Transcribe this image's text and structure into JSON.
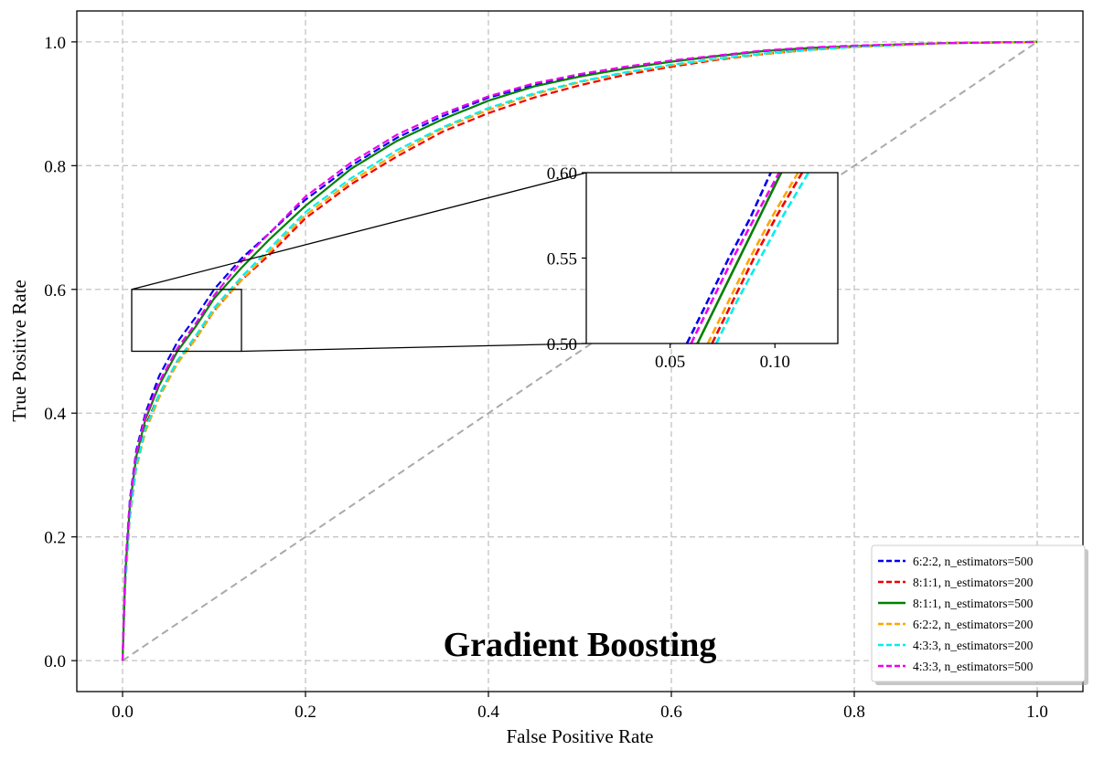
{
  "chart_data": {
    "type": "line",
    "title": "",
    "annotation": "Gradient Boosting",
    "xlabel": "False Positive Rate",
    "ylabel": "True Positive Rate",
    "xlim": [
      -0.05,
      1.05
    ],
    "ylim": [
      -0.05,
      1.05
    ],
    "xticks": [
      0.0,
      0.2,
      0.4,
      0.6,
      0.8,
      1.0
    ],
    "yticks": [
      0.0,
      0.2,
      0.4,
      0.6,
      0.8,
      1.0
    ],
    "xtick_labels": [
      "0.0",
      "0.2",
      "0.4",
      "0.6",
      "0.8",
      "1.0"
    ],
    "ytick_labels": [
      "0.0",
      "0.2",
      "0.4",
      "0.6",
      "0.8",
      "1.0"
    ],
    "grid": true,
    "legend_position": "lower-right",
    "diagonal": {
      "x": [
        0,
        1
      ],
      "y": [
        0,
        1
      ],
      "color": "#aaaaaa",
      "dashed": true
    },
    "series": [
      {
        "name": "6:2:2, n_estimators=500",
        "color": "#0000ee",
        "dashed": true,
        "x": [
          0,
          0.003,
          0.008,
          0.015,
          0.025,
          0.04,
          0.06,
          0.08,
          0.1,
          0.13,
          0.16,
          0.2,
          0.25,
          0.3,
          0.35,
          0.4,
          0.45,
          0.5,
          0.55,
          0.6,
          0.65,
          0.7,
          0.75,
          0.8,
          0.85,
          0.9,
          0.95,
          1.0
        ],
        "y": [
          0,
          0.15,
          0.26,
          0.34,
          0.4,
          0.46,
          0.515,
          0.555,
          0.6,
          0.65,
          0.69,
          0.745,
          0.8,
          0.845,
          0.88,
          0.91,
          0.93,
          0.945,
          0.958,
          0.968,
          0.977,
          0.985,
          0.99,
          0.993,
          0.996,
          0.998,
          0.999,
          1.0
        ]
      },
      {
        "name": "8:1:1, n_estimators=200",
        "color": "#ee0000",
        "dashed": true,
        "x": [
          0,
          0.003,
          0.008,
          0.015,
          0.025,
          0.04,
          0.06,
          0.08,
          0.1,
          0.13,
          0.16,
          0.2,
          0.25,
          0.3,
          0.35,
          0.4,
          0.45,
          0.5,
          0.55,
          0.6,
          0.65,
          0.7,
          0.75,
          0.8,
          0.85,
          0.9,
          0.95,
          1.0
        ],
        "y": [
          0,
          0.13,
          0.24,
          0.32,
          0.38,
          0.43,
          0.485,
          0.52,
          0.565,
          0.615,
          0.655,
          0.715,
          0.77,
          0.815,
          0.855,
          0.885,
          0.91,
          0.93,
          0.947,
          0.96,
          0.971,
          0.98,
          0.987,
          0.992,
          0.995,
          0.998,
          0.999,
          1.0
        ]
      },
      {
        "name": "8:1:1, n_estimators=500",
        "color": "#008000",
        "dashed": false,
        "x": [
          0,
          0.003,
          0.008,
          0.015,
          0.025,
          0.04,
          0.06,
          0.08,
          0.1,
          0.13,
          0.16,
          0.2,
          0.25,
          0.3,
          0.35,
          0.4,
          0.45,
          0.5,
          0.55,
          0.6,
          0.65,
          0.7,
          0.75,
          0.8,
          0.85,
          0.9,
          0.95,
          1.0
        ],
        "y": [
          0,
          0.14,
          0.25,
          0.33,
          0.39,
          0.445,
          0.5,
          0.54,
          0.585,
          0.635,
          0.68,
          0.735,
          0.795,
          0.84,
          0.875,
          0.905,
          0.928,
          0.944,
          0.957,
          0.968,
          0.977,
          0.985,
          0.99,
          0.993,
          0.996,
          0.998,
          0.999,
          1.0
        ]
      },
      {
        "name": "6:2:2, n_estimators=200",
        "color": "#ffa500",
        "dashed": true,
        "x": [
          0,
          0.003,
          0.008,
          0.015,
          0.025,
          0.04,
          0.06,
          0.08,
          0.1,
          0.13,
          0.16,
          0.2,
          0.25,
          0.3,
          0.35,
          0.4,
          0.45,
          0.5,
          0.55,
          0.6,
          0.65,
          0.7,
          0.75,
          0.8,
          0.85,
          0.9,
          0.95,
          1.0
        ],
        "y": [
          0,
          0.12,
          0.23,
          0.31,
          0.37,
          0.425,
          0.48,
          0.52,
          0.565,
          0.615,
          0.66,
          0.72,
          0.775,
          0.82,
          0.86,
          0.89,
          0.915,
          0.935,
          0.95,
          0.962,
          0.972,
          0.98,
          0.987,
          0.992,
          0.995,
          0.998,
          0.999,
          1.0
        ]
      },
      {
        "name": "4:3:3, n_estimators=200",
        "color": "#00eeee",
        "dashed": true,
        "x": [
          0,
          0.003,
          0.008,
          0.015,
          0.025,
          0.04,
          0.06,
          0.08,
          0.1,
          0.13,
          0.16,
          0.2,
          0.25,
          0.3,
          0.35,
          0.4,
          0.45,
          0.5,
          0.55,
          0.6,
          0.65,
          0.7,
          0.75,
          0.8,
          0.85,
          0.9,
          0.95,
          1.0
        ],
        "y": [
          0,
          0.125,
          0.235,
          0.315,
          0.375,
          0.43,
          0.485,
          0.525,
          0.57,
          0.62,
          0.665,
          0.725,
          0.78,
          0.825,
          0.862,
          0.893,
          0.917,
          0.936,
          0.951,
          0.963,
          0.973,
          0.981,
          0.987,
          0.992,
          0.995,
          0.998,
          0.999,
          1.0
        ]
      },
      {
        "name": "4:3:3, n_estimators=500",
        "color": "#ee00ee",
        "dashed": true,
        "x": [
          0,
          0.003,
          0.008,
          0.015,
          0.025,
          0.04,
          0.06,
          0.08,
          0.1,
          0.13,
          0.16,
          0.2,
          0.25,
          0.3,
          0.35,
          0.4,
          0.45,
          0.5,
          0.55,
          0.6,
          0.65,
          0.7,
          0.75,
          0.8,
          0.85,
          0.9,
          0.95,
          1.0
        ],
        "y": [
          0,
          0.145,
          0.255,
          0.335,
          0.395,
          0.45,
          0.505,
          0.545,
          0.59,
          0.645,
          0.69,
          0.75,
          0.805,
          0.85,
          0.884,
          0.912,
          0.933,
          0.948,
          0.96,
          0.97,
          0.978,
          0.986,
          0.991,
          0.994,
          0.996,
          0.998,
          0.999,
          1.0
        ]
      }
    ],
    "inset": {
      "xlim": [
        0.01,
        0.13
      ],
      "ylim": [
        0.5,
        0.6
      ],
      "xticks": [
        0.05,
        0.1
      ],
      "yticks": [
        0.5,
        0.55,
        0.6
      ],
      "xtick_labels": [
        "0.05",
        "0.10"
      ],
      "ytick_labels": [
        "0.50",
        "0.55",
        "0.60"
      ],
      "series_points": [
        {
          "x": [
            0.058,
            0.068,
            0.078,
            0.088,
            0.098
          ],
          "y": [
            0.5,
            0.525,
            0.55,
            0.573,
            0.6
          ]
        },
        {
          "x": [
            0.07,
            0.08,
            0.09,
            0.101,
            0.113
          ],
          "y": [
            0.5,
            0.525,
            0.55,
            0.575,
            0.6
          ]
        },
        {
          "x": [
            0.063,
            0.073,
            0.083,
            0.093,
            0.103
          ],
          "y": [
            0.5,
            0.525,
            0.55,
            0.575,
            0.6
          ]
        },
        {
          "x": [
            0.068,
            0.078,
            0.088,
            0.099,
            0.111
          ],
          "y": [
            0.5,
            0.525,
            0.55,
            0.575,
            0.6
          ]
        },
        {
          "x": [
            0.072,
            0.082,
            0.093,
            0.104,
            0.116
          ],
          "y": [
            0.5,
            0.525,
            0.55,
            0.575,
            0.6
          ]
        },
        {
          "x": [
            0.06,
            0.07,
            0.08,
            0.091,
            0.102
          ],
          "y": [
            0.5,
            0.525,
            0.55,
            0.575,
            0.6
          ]
        }
      ]
    }
  }
}
